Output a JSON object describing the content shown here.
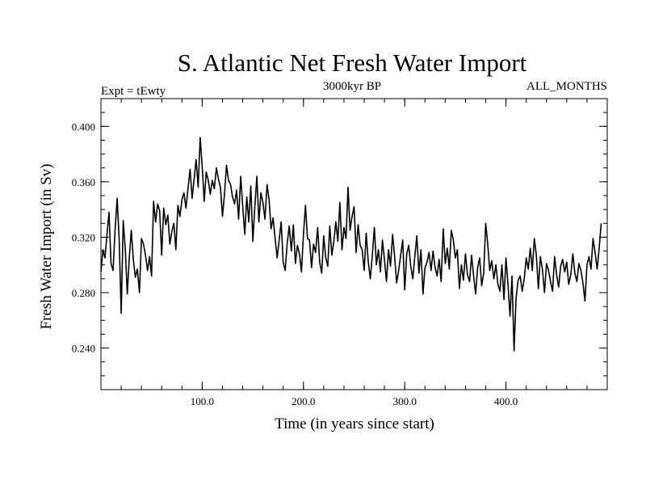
{
  "chart_data": {
    "type": "line",
    "title": "S. Atlantic Net Fresh Water Import",
    "subtitle_left": "Expt = tEwty",
    "subtitle_center": "3000kyr BP",
    "subtitle_right": "ALL_MONTHS",
    "xlabel": "Time (in years since start)",
    "ylabel": "Fresh Water Import (in Sv)",
    "xlim": [
      0,
      500
    ],
    "ylim": [
      0.21,
      0.42
    ],
    "x_ticks": [
      100,
      200,
      300,
      400
    ],
    "x_tick_labels": [
      "100.0",
      "200.0",
      "300.0",
      "400.0"
    ],
    "y_ticks": [
      0.24,
      0.28,
      0.32,
      0.36,
      0.4
    ],
    "y_tick_labels": [
      "0.240",
      "0.280",
      "0.320",
      "0.360",
      "0.400"
    ],
    "x_minor_step": 20,
    "y_minor_step": 0.01,
    "series": [
      {
        "name": "S. Atlantic net fresh water import",
        "x_start": 0,
        "x_step": 2,
        "values": [
          0.295,
          0.311,
          0.305,
          0.322,
          0.338,
          0.301,
          0.296,
          0.326,
          0.348,
          0.318,
          0.265,
          0.332,
          0.312,
          0.279,
          0.305,
          0.325,
          0.304,
          0.291,
          0.297,
          0.28,
          0.319,
          0.315,
          0.307,
          0.296,
          0.306,
          0.292,
          0.346,
          0.331,
          0.344,
          0.339,
          0.307,
          0.341,
          0.329,
          0.336,
          0.315,
          0.324,
          0.33,
          0.311,
          0.343,
          0.335,
          0.347,
          0.352,
          0.341,
          0.355,
          0.369,
          0.348,
          0.362,
          0.376,
          0.356,
          0.392,
          0.371,
          0.346,
          0.367,
          0.361,
          0.351,
          0.361,
          0.355,
          0.37,
          0.362,
          0.356,
          0.335,
          0.351,
          0.372,
          0.361,
          0.358,
          0.349,
          0.344,
          0.354,
          0.333,
          0.364,
          0.342,
          0.322,
          0.349,
          0.331,
          0.357,
          0.317,
          0.342,
          0.364,
          0.331,
          0.352,
          0.345,
          0.333,
          0.358,
          0.347,
          0.326,
          0.334,
          0.319,
          0.305,
          0.318,
          0.331,
          0.302,
          0.296,
          0.316,
          0.328,
          0.31,
          0.329,
          0.301,
          0.314,
          0.308,
          0.295,
          0.322,
          0.343,
          0.319,
          0.318,
          0.298,
          0.315,
          0.309,
          0.327,
          0.302,
          0.294,
          0.321,
          0.305,
          0.299,
          0.328,
          0.307,
          0.317,
          0.331,
          0.317,
          0.345,
          0.311,
          0.327,
          0.319,
          0.356,
          0.325,
          0.335,
          0.342,
          0.309,
          0.329,
          0.314,
          0.311,
          0.296,
          0.323,
          0.302,
          0.29,
          0.307,
          0.327,
          0.3,
          0.311,
          0.295,
          0.318,
          0.304,
          0.288,
          0.311,
          0.299,
          0.322,
          0.306,
          0.287,
          0.296,
          0.307,
          0.318,
          0.282,
          0.308,
          0.314,
          0.299,
          0.29,
          0.306,
          0.321,
          0.294,
          0.311,
          0.279,
          0.298,
          0.302,
          0.309,
          0.296,
          0.31,
          0.298,
          0.292,
          0.304,
          0.288,
          0.326,
          0.301,
          0.312,
          0.297,
          0.325,
          0.318,
          0.305,
          0.311,
          0.283,
          0.3,
          0.289,
          0.308,
          0.293,
          0.288,
          0.307,
          0.292,
          0.279,
          0.298,
          0.305,
          0.285,
          0.294,
          0.33,
          0.315,
          0.296,
          0.303,
          0.29,
          0.3,
          0.286,
          0.281,
          0.3,
          0.275,
          0.305,
          0.286,
          0.263,
          0.292,
          0.238,
          0.276,
          0.289,
          0.292,
          0.281,
          0.29,
          0.305,
          0.297,
          0.312,
          0.296,
          0.319,
          0.307,
          0.283,
          0.306,
          0.297,
          0.28,
          0.301,
          0.296,
          0.288,
          0.281,
          0.306,
          0.293,
          0.284,
          0.299,
          0.304,
          0.295,
          0.302,
          0.286,
          0.293,
          0.308,
          0.294,
          0.288,
          0.301,
          0.296,
          0.287,
          0.274,
          0.3,
          0.306,
          0.297,
          0.319,
          0.309,
          0.297,
          0.312,
          0.33
        ]
      }
    ]
  }
}
